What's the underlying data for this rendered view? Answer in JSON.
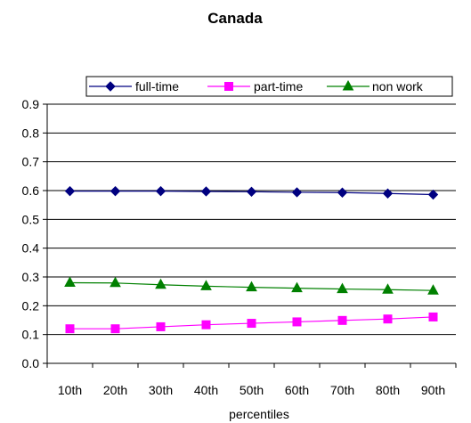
{
  "chart_data": {
    "type": "line",
    "title": "Canada",
    "xlabel": "percentiles",
    "ylabel": "",
    "categories": [
      "10th",
      "20th",
      "30th",
      "40th",
      "50th",
      "60th",
      "70th",
      "80th",
      "90th"
    ],
    "ylim": [
      0,
      0.9
    ],
    "yticks": [
      "0.0",
      "0.1",
      "0.2",
      "0.3",
      "0.4",
      "0.5",
      "0.6",
      "0.7",
      "0.8",
      "0.9"
    ],
    "grid": "horizontal",
    "legend": "top",
    "series": [
      {
        "name": "full-time",
        "color": "#000080",
        "marker": "diamond",
        "values": [
          0.598,
          0.598,
          0.598,
          0.597,
          0.596,
          0.594,
          0.593,
          0.59,
          0.586
        ]
      },
      {
        "name": "part-time",
        "color": "#ff00ff",
        "marker": "square",
        "values": [
          0.12,
          0.12,
          0.127,
          0.134,
          0.139,
          0.144,
          0.149,
          0.154,
          0.161
        ]
      },
      {
        "name": "non work",
        "color": "#008000",
        "marker": "triangle",
        "values": [
          0.28,
          0.279,
          0.273,
          0.268,
          0.264,
          0.261,
          0.258,
          0.256,
          0.253
        ]
      }
    ]
  }
}
